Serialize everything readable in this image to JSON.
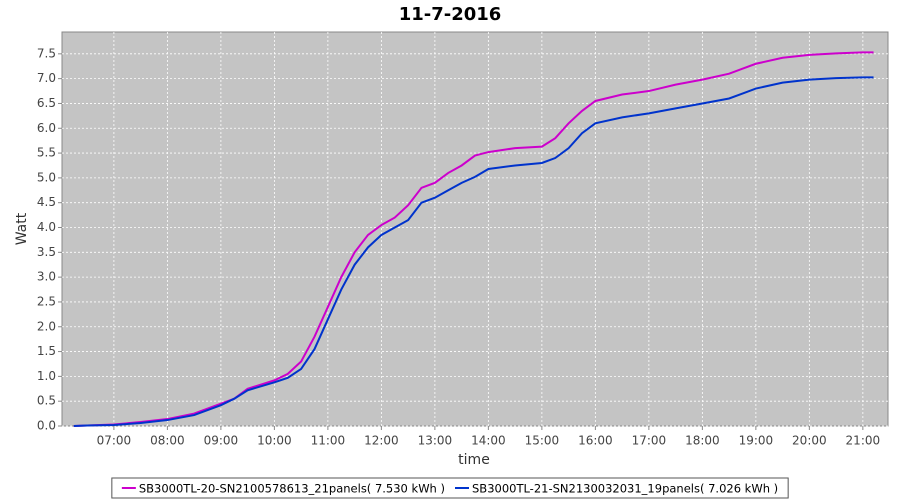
{
  "chart_data": {
    "type": "line",
    "title": "11-7-2016",
    "x_label": "time",
    "y_label": "Watt",
    "x": [
      6.25,
      6.5,
      7,
      7.5,
      8,
      8.5,
      9,
      9.25,
      9.5,
      10,
      10.25,
      10.5,
      10.75,
      11,
      11.25,
      11.5,
      11.75,
      12,
      12.25,
      12.5,
      12.75,
      13,
      13.25,
      13.5,
      13.75,
      14,
      14.5,
      15,
      15.25,
      15.5,
      15.75,
      16,
      16.5,
      17,
      17.5,
      18,
      18.5,
      18.75,
      19,
      19.5,
      20,
      20.5,
      21,
      21.2
    ],
    "series": [
      {
        "name": "SB3000TL-20-SN2100578613_21panels( 7.530 kWh )",
        "color": "#cc00cc",
        "values": [
          0,
          0.01,
          0.03,
          0.08,
          0.14,
          0.25,
          0.45,
          0.55,
          0.75,
          0.92,
          1.05,
          1.3,
          1.8,
          2.4,
          3.0,
          3.5,
          3.85,
          4.05,
          4.2,
          4.45,
          4.8,
          4.9,
          5.1,
          5.25,
          5.45,
          5.52,
          5.6,
          5.63,
          5.8,
          6.1,
          6.35,
          6.55,
          6.68,
          6.75,
          6.88,
          6.98,
          7.1,
          7.2,
          7.3,
          7.42,
          7.48,
          7.51,
          7.53,
          7.53
        ]
      },
      {
        "name": "SB3000TL-21-SN2130032031_19panels( 7.026 kWh )",
        "color": "#0033cc",
        "values": [
          0,
          0.01,
          0.02,
          0.06,
          0.12,
          0.22,
          0.42,
          0.55,
          0.72,
          0.88,
          0.97,
          1.15,
          1.55,
          2.15,
          2.75,
          3.25,
          3.6,
          3.85,
          4.0,
          4.15,
          4.5,
          4.6,
          4.75,
          4.9,
          5.02,
          5.18,
          5.25,
          5.3,
          5.4,
          5.6,
          5.9,
          6.1,
          6.22,
          6.3,
          6.4,
          6.5,
          6.6,
          6.7,
          6.8,
          6.92,
          6.98,
          7.01,
          7.026,
          7.026
        ]
      }
    ],
    "xlim": [
      6.03,
      21.47
    ],
    "xticks": [
      {
        "value": 7,
        "label": "07:00"
      },
      {
        "value": 8,
        "label": "08:00"
      },
      {
        "value": 9,
        "label": "09:00"
      },
      {
        "value": 10,
        "label": "10:00"
      },
      {
        "value": 11,
        "label": "11:00"
      },
      {
        "value": 12,
        "label": "12:00"
      },
      {
        "value": 13,
        "label": "13:00"
      },
      {
        "value": 14,
        "label": "14:00"
      },
      {
        "value": 15,
        "label": "15:00"
      },
      {
        "value": 16,
        "label": "16:00"
      },
      {
        "value": 17,
        "label": "17:00"
      },
      {
        "value": 18,
        "label": "18:00"
      },
      {
        "value": 19,
        "label": "19:00"
      },
      {
        "value": 20,
        "label": "20:00"
      },
      {
        "value": 21,
        "label": "21:00"
      }
    ],
    "ylim": [
      0,
      7.94
    ],
    "yticks": [
      {
        "value": 0,
        "label": "0.0"
      },
      0.5,
      {
        "value": 1,
        "label": "1.0"
      },
      1.5,
      {
        "value": 2,
        "label": "2.0"
      },
      2.5,
      {
        "value": 3,
        "label": "3.0"
      },
      3.5,
      {
        "value": 4,
        "label": "4.0"
      },
      4.5,
      {
        "value": 5,
        "label": "5.0"
      },
      5.5,
      {
        "value": 6,
        "label": "6.0"
      },
      6.5,
      {
        "value": 7,
        "label": "7.0"
      },
      7.5
    ],
    "grid": true,
    "legend": "bottom"
  }
}
